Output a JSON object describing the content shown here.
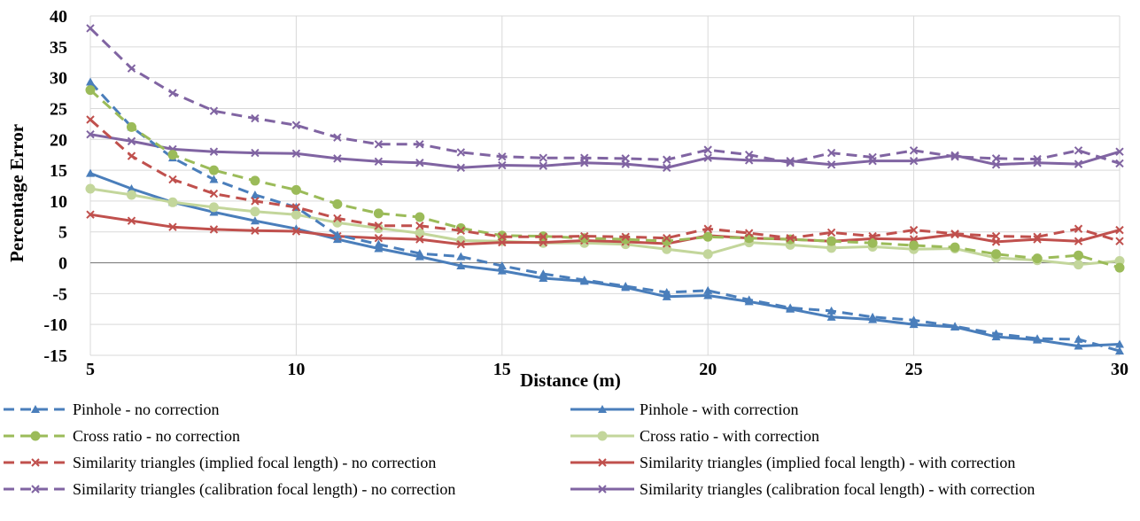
{
  "chart_data": {
    "type": "line",
    "title": "",
    "xlabel": "Distance (m)",
    "ylabel": "Percentage Error",
    "xlim": [
      5,
      30
    ],
    "ylim": [
      -15,
      40
    ],
    "x_ticks": [
      "5",
      "10",
      "15",
      "20",
      "25",
      "30"
    ],
    "y_ticks": [
      "-15",
      "-10",
      "-5",
      "0",
      "5",
      "10",
      "15",
      "20",
      "25",
      "30",
      "35",
      "40"
    ],
    "grid": true,
    "legend_position": "bottom",
    "x": [
      5,
      6,
      7,
      8,
      9,
      10,
      11,
      12,
      13,
      14,
      15,
      16,
      17,
      18,
      19,
      20,
      21,
      22,
      23,
      24,
      25,
      26,
      27,
      28,
      29,
      30
    ],
    "series": [
      {
        "name": "Pinhole - no correction",
        "color": "#4a7ebb",
        "dash": true,
        "marker": "triangle",
        "values": [
          29.3,
          22,
          17,
          13.5,
          11,
          9,
          4.5,
          3,
          1.5,
          1,
          -0.5,
          -1.8,
          -2.8,
          -3.8,
          -4.8,
          -4.5,
          -6,
          -7.3,
          -7.8,
          -8.8,
          -9.3,
          -10.3,
          -11.5,
          -12.3,
          -12.4,
          -14.3
        ]
      },
      {
        "name": "Pinhole - with correction",
        "color": "#4a7ebb",
        "dash": false,
        "marker": "triangle",
        "values": [
          14.5,
          12,
          9.8,
          8.2,
          6.8,
          5.5,
          3.8,
          2.3,
          1,
          -0.5,
          -1.3,
          -2.5,
          -3,
          -4,
          -5.5,
          -5.3,
          -6.3,
          -7.5,
          -8.8,
          -9.2,
          -10,
          -10.4,
          -12,
          -12.5,
          -13.5,
          -13.2
        ]
      },
      {
        "name": "Cross ratio - no correction",
        "color": "#9bbb59",
        "dash": true,
        "marker": "circle",
        "values": [
          28,
          22,
          17.5,
          15,
          13.3,
          11.8,
          9.5,
          8,
          7.4,
          5.6,
          4.4,
          4.3,
          4,
          3.8,
          3.5,
          4.2,
          4,
          3.8,
          3.5,
          3.2,
          2.8,
          2.5,
          1.4,
          0.7,
          1.2,
          -0.8
        ]
      },
      {
        "name": "Cross ratio - with correction",
        "color": "#c3d69b",
        "dash": false,
        "marker": "circle",
        "values": [
          12,
          11,
          9.8,
          9,
          8.3,
          7.8,
          6.5,
          5.6,
          4.8,
          3.6,
          3.5,
          3.2,
          3.2,
          3,
          2.2,
          1.4,
          3.3,
          2.9,
          2.4,
          2.6,
          2.2,
          2.3,
          0.8,
          0.4,
          -0.3,
          0.3
        ]
      },
      {
        "name": "Similarity triangles (implied focal length) - no correction",
        "color": "#c0504d",
        "dash": true,
        "marker": "x",
        "values": [
          23.2,
          17.3,
          13.5,
          11.2,
          10,
          9,
          7.2,
          6,
          6,
          5.2,
          4.2,
          4.2,
          4.3,
          4.2,
          4,
          5.5,
          4.8,
          4,
          4.9,
          4.3,
          5.3,
          4.7,
          4.3,
          4.2,
          5.5,
          3.5
        ]
      },
      {
        "name": "Similarity triangles (implied focal length) - with correction",
        "color": "#c0504d",
        "dash": false,
        "marker": "x",
        "values": [
          7.8,
          6.8,
          5.8,
          5.4,
          5.2,
          5.1,
          4.3,
          4,
          3.8,
          3,
          3.3,
          3.3,
          3.6,
          3.4,
          3.1,
          4.4,
          4,
          3.8,
          3.5,
          3.9,
          3.8,
          4.6,
          3.4,
          3.8,
          3.5,
          5.3
        ]
      },
      {
        "name": "Similarity triangles (calibration focal length) - no correction",
        "color": "#8064a2",
        "dash": true,
        "marker": "x",
        "values": [
          38,
          31.5,
          27.5,
          24.6,
          23.4,
          22.3,
          20.3,
          19.2,
          19.2,
          17.9,
          17.2,
          17,
          17,
          16.9,
          16.7,
          18.3,
          17.5,
          16.2,
          17.8,
          17.1,
          18.2,
          17.2,
          16.9,
          16.8,
          18.2,
          16.1
        ]
      },
      {
        "name": "Similarity triangles (calibration focal length) - with correction",
        "color": "#8064a2",
        "dash": false,
        "marker": "x",
        "values": [
          20.8,
          19.7,
          18.4,
          18,
          17.8,
          17.7,
          16.9,
          16.4,
          16.2,
          15.4,
          15.8,
          15.7,
          16.2,
          16,
          15.4,
          17,
          16.6,
          16.5,
          15.9,
          16.5,
          16.5,
          17.4,
          15.9,
          16.2,
          16,
          18
        ]
      }
    ]
  }
}
